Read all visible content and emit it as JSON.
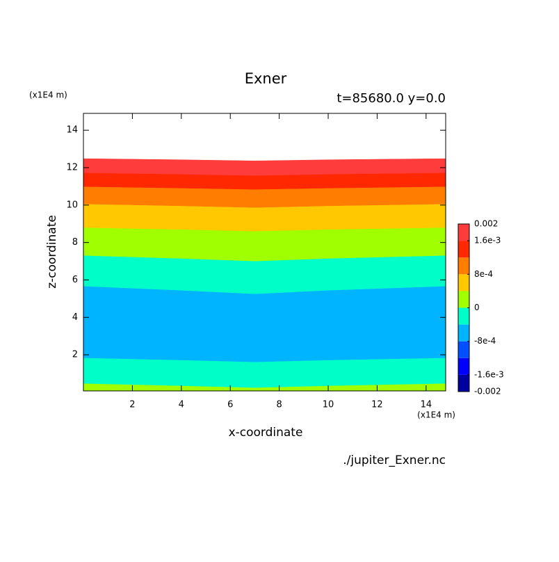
{
  "chart_data": {
    "type": "contour",
    "title": "Exner",
    "subtitle": "t=85680.0 y=0.0",
    "xlabel": "x-coordinate",
    "ylabel": "z-coordinate",
    "x_unit": "(x1E4 m)",
    "y_unit": "(x1E4 m)",
    "footnote": "./jupiter_Exner.nc",
    "xlim": [
      0,
      14.8
    ],
    "ylim": [
      0.07,
      14.9
    ],
    "xticks": [
      2,
      4,
      6,
      8,
      10,
      12,
      14
    ],
    "yticks": [
      2,
      4,
      6,
      8,
      10,
      12,
      14
    ],
    "x": [
      0,
      4,
      7,
      10,
      14.8
    ],
    "regions": [
      {
        "color": "#a0ff00",
        "top": [
          0.47,
          0.35,
          0.25,
          0.35,
          0.47
        ]
      },
      {
        "color": "#00ffc8",
        "top": [
          1.84,
          1.72,
          1.62,
          1.72,
          1.84
        ]
      },
      {
        "color": "#00b4ff",
        "top": [
          5.67,
          5.45,
          5.26,
          5.45,
          5.67
        ]
      },
      {
        "color": "#00ffc8",
        "top": [
          7.31,
          7.15,
          7.01,
          7.15,
          7.31
        ]
      },
      {
        "color": "#a0ff00",
        "top": [
          8.8,
          8.7,
          8.61,
          8.7,
          8.8
        ]
      },
      {
        "color": "#ffc800",
        "top": [
          10.06,
          9.96,
          9.87,
          9.96,
          10.06
        ]
      },
      {
        "color": "#ff7d00",
        "top": [
          10.99,
          10.91,
          10.84,
          10.91,
          10.99
        ]
      },
      {
        "color": "#ff2800",
        "top": [
          11.73,
          11.65,
          11.58,
          11.65,
          11.73
        ]
      },
      {
        "color": "#ff3c3c",
        "top": [
          12.48,
          12.42,
          12.36,
          12.42,
          12.48
        ]
      }
    ],
    "colorbar": {
      "lim": [
        -0.002,
        0.002
      ],
      "colors": [
        "#0000a0",
        "#0000ff",
        "#0050ff",
        "#00b4ff",
        "#00ffc8",
        "#a0ff00",
        "#ffc800",
        "#ff7d00",
        "#ff2800",
        "#ff3c3c"
      ],
      "ticks": [
        0.002,
        {
          "value": 0.0016,
          "label": "1.6e-3"
        },
        {
          "value": 0.0008,
          "label": "8e-4"
        },
        0,
        {
          "value": -0.0008,
          "label": "-8e-4"
        },
        {
          "value": -0.0016,
          "label": "-1.6e-3"
        },
        -0.002
      ]
    }
  }
}
